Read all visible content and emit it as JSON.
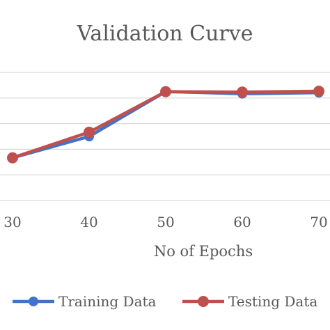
{
  "chart_data": {
    "type": "line",
    "title": "Validation Curve",
    "xlabel": "No of Epochs",
    "ylabel": "",
    "categories": [
      "30",
      "40",
      "50",
      "60",
      "70"
    ],
    "x": [
      30,
      40,
      50,
      60,
      70
    ],
    "series": [
      {
        "name": "Training Data",
        "color": "#4472c4",
        "values": [
          0.6,
          0.7,
          0.91,
          0.9,
          0.905
        ]
      },
      {
        "name": "Testing Data",
        "color": "#c0504d",
        "values": [
          0.6,
          0.72,
          0.91,
          0.908,
          0.912
        ]
      }
    ],
    "grid": true,
    "legend": "bottom"
  }
}
